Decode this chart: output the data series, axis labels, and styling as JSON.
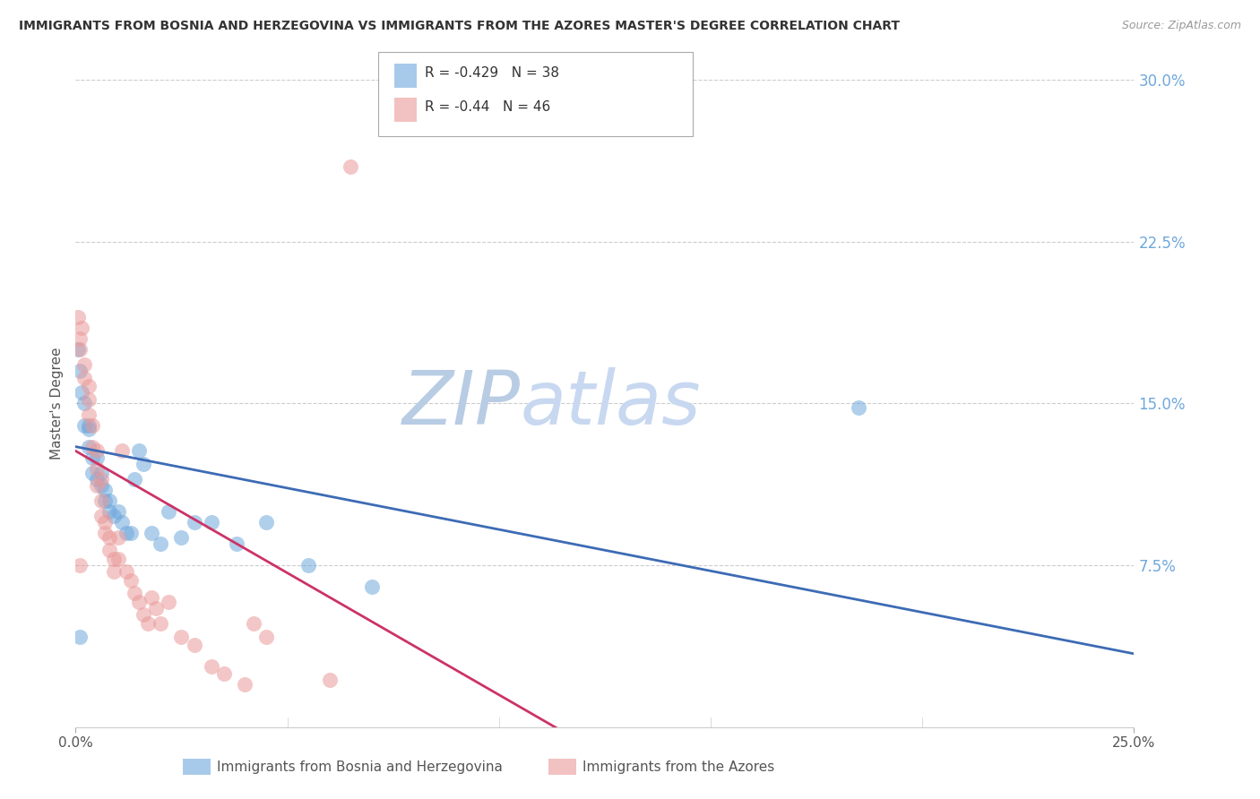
{
  "title": "IMMIGRANTS FROM BOSNIA AND HERZEGOVINA VS IMMIGRANTS FROM THE AZORES MASTER'S DEGREE CORRELATION CHART",
  "source": "Source: ZipAtlas.com",
  "xlabel_blue": "Immigrants from Bosnia and Herzegovina",
  "xlabel_pink": "Immigrants from the Azores",
  "ylabel": "Master's Degree",
  "xlim": [
    0.0,
    0.25
  ],
  "ylim": [
    0.0,
    0.3
  ],
  "yticks": [
    0.0,
    0.075,
    0.15,
    0.225,
    0.3
  ],
  "ytick_labels_right": [
    "",
    "7.5%",
    "15.0%",
    "22.5%",
    "30.0%"
  ],
  "blue_R": -0.429,
  "blue_N": 38,
  "pink_R": -0.44,
  "pink_N": 46,
  "blue_color": "#6fa8dc",
  "pink_color": "#ea9999",
  "blue_line_color": "#3d6bb5",
  "pink_line_color": "#cc3366",
  "watermark_zip": "ZIP",
  "watermark_atlas": "atlas",
  "watermark_color": "#c8d8f0",
  "blue_scatter_x": [
    0.0005,
    0.001,
    0.0015,
    0.002,
    0.002,
    0.003,
    0.003,
    0.004,
    0.004,
    0.005,
    0.005,
    0.006,
    0.006,
    0.007,
    0.007,
    0.008,
    0.008,
    0.009,
    0.01,
    0.011,
    0.012,
    0.013,
    0.014,
    0.015,
    0.016,
    0.018,
    0.02,
    0.022,
    0.025,
    0.028,
    0.032,
    0.038,
    0.045,
    0.055,
    0.07,
    0.185,
    0.001,
    0.003
  ],
  "blue_scatter_y": [
    0.175,
    0.165,
    0.155,
    0.15,
    0.14,
    0.138,
    0.13,
    0.125,
    0.118,
    0.125,
    0.115,
    0.118,
    0.112,
    0.11,
    0.105,
    0.105,
    0.1,
    0.098,
    0.1,
    0.095,
    0.09,
    0.09,
    0.115,
    0.128,
    0.122,
    0.09,
    0.085,
    0.1,
    0.088,
    0.095,
    0.095,
    0.085,
    0.095,
    0.075,
    0.065,
    0.148,
    0.042,
    0.14
  ],
  "pink_scatter_x": [
    0.0005,
    0.001,
    0.001,
    0.0015,
    0.002,
    0.002,
    0.003,
    0.003,
    0.003,
    0.004,
    0.004,
    0.005,
    0.005,
    0.005,
    0.006,
    0.006,
    0.006,
    0.007,
    0.007,
    0.008,
    0.008,
    0.009,
    0.009,
    0.01,
    0.01,
    0.011,
    0.012,
    0.013,
    0.014,
    0.015,
    0.016,
    0.017,
    0.018,
    0.019,
    0.02,
    0.022,
    0.025,
    0.028,
    0.032,
    0.035,
    0.04,
    0.042,
    0.045,
    0.06,
    0.065,
    0.001
  ],
  "pink_scatter_y": [
    0.19,
    0.18,
    0.175,
    0.185,
    0.168,
    0.162,
    0.158,
    0.152,
    0.145,
    0.14,
    0.13,
    0.128,
    0.12,
    0.112,
    0.115,
    0.105,
    0.098,
    0.095,
    0.09,
    0.088,
    0.082,
    0.078,
    0.072,
    0.088,
    0.078,
    0.128,
    0.072,
    0.068,
    0.062,
    0.058,
    0.052,
    0.048,
    0.06,
    0.055,
    0.048,
    0.058,
    0.042,
    0.038,
    0.028,
    0.025,
    0.02,
    0.048,
    0.042,
    0.022,
    0.26,
    0.075
  ],
  "blue_line_x0": 0.0,
  "blue_line_y0": 0.13,
  "blue_line_x1": 0.25,
  "blue_line_y1": 0.034,
  "pink_line_x0": 0.0,
  "pink_line_y0": 0.128,
  "pink_line_x1": 0.115,
  "pink_line_y1": -0.002
}
